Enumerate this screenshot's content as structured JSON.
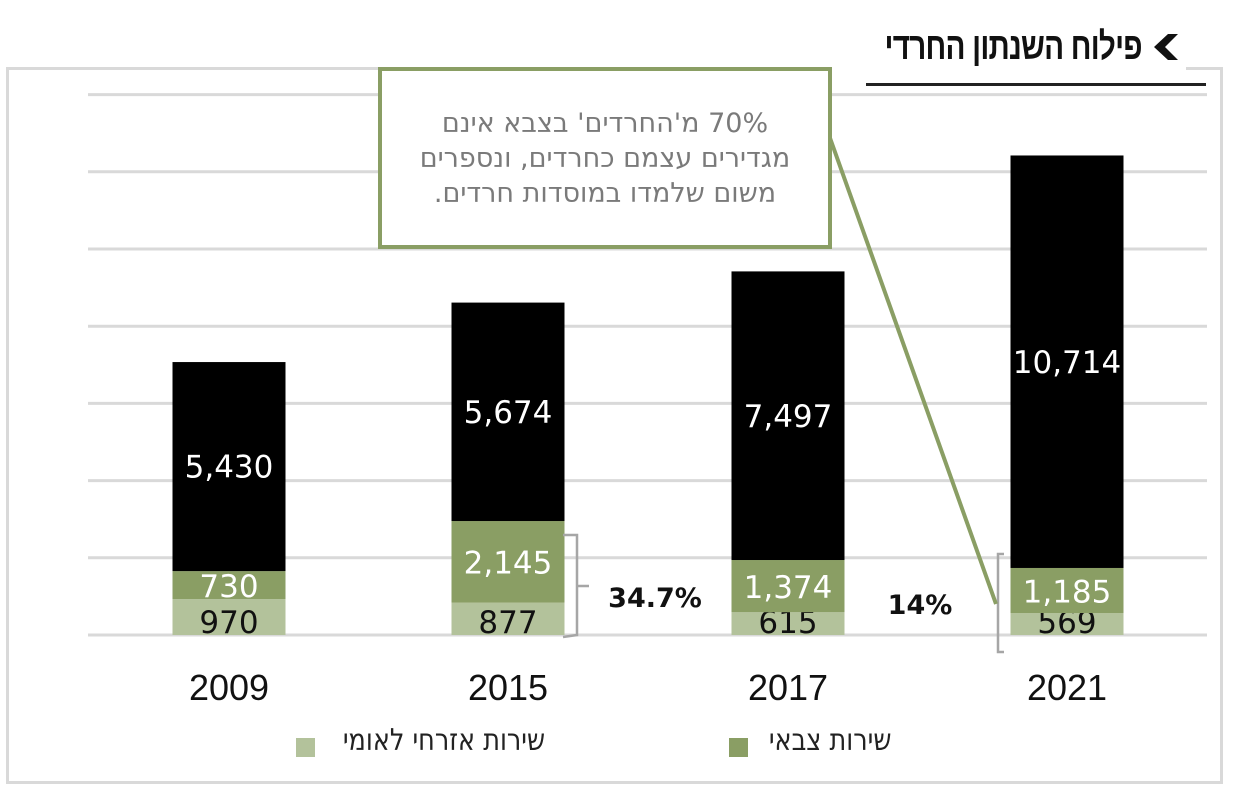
{
  "header": {
    "title": "פילוח השנתון החרדי",
    "icon": "chevron-left-icon"
  },
  "callout": {
    "text": "70% מ'החרדים' בצבא אינם מגדירים עצמם כחרדים, ונספרים משום שלמדו במוסדות  חרדים."
  },
  "annotations": [
    {
      "label": "34.7%",
      "applies_to": "2015"
    },
    {
      "label": "14%",
      "applies_to": "2021"
    }
  ],
  "legend": [
    {
      "label": "שירות צבאי",
      "color": "#8a9e64"
    },
    {
      "label": "שירות אזרחי לאומי",
      "color": "#b3c29b"
    }
  ],
  "chart_data": {
    "type": "bar",
    "stacked": true,
    "title": "פילוח השנתון החרדי",
    "xlabel": "",
    "ylabel": "",
    "grid": true,
    "legend_position": "bottom",
    "categories": [
      "2009",
      "2015",
      "2017",
      "2021"
    ],
    "series": [
      {
        "name": "שירות אזרחי לאומי",
        "color": "#b3c29b",
        "label_color": "#111111",
        "values": [
          970,
          877,
          615,
          569
        ]
      },
      {
        "name": "שירות צבאי",
        "color": "#8a9e64",
        "label_color": "#ffffff",
        "values": [
          730,
          2145,
          1374,
          1185
        ]
      },
      {
        "name": "",
        "color": "#000000",
        "label_color": "#ffffff",
        "values": [
          5430,
          5674,
          7497,
          10714
        ]
      }
    ],
    "value_labels": [
      [
        "970",
        "877",
        "615",
        "569"
      ],
      [
        "730",
        "2,145",
        "1,374",
        "1,185"
      ],
      [
        "5,430",
        "5,674",
        "7,497",
        "10,714"
      ]
    ]
  }
}
